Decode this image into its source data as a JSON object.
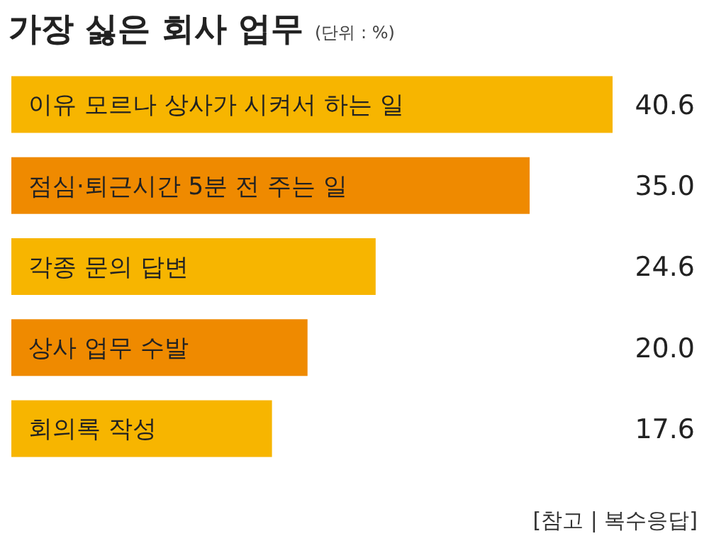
{
  "chart_data": {
    "type": "bar",
    "orientation": "horizontal",
    "title": "가장 싫은 회사 업무",
    "subtitle": "(단위 : %)",
    "categories": [
      "이유 모르나 상사가 시켜서 하는 일",
      "점심·퇴근시간 5분 전 주는 일",
      "각종 문의 답변",
      "상사 업무 수발",
      "회의록 작성"
    ],
    "values": [
      40.6,
      35.0,
      24.6,
      20.0,
      17.6
    ],
    "value_labels": [
      "40.6",
      "35.0",
      "24.6",
      "20.0",
      "17.6"
    ],
    "colors": [
      "#f7b500",
      "#ef8a00",
      "#f7b500",
      "#ef8a00",
      "#f7b500"
    ],
    "annotations": [
      "[참고 | 복수응답]"
    ]
  }
}
